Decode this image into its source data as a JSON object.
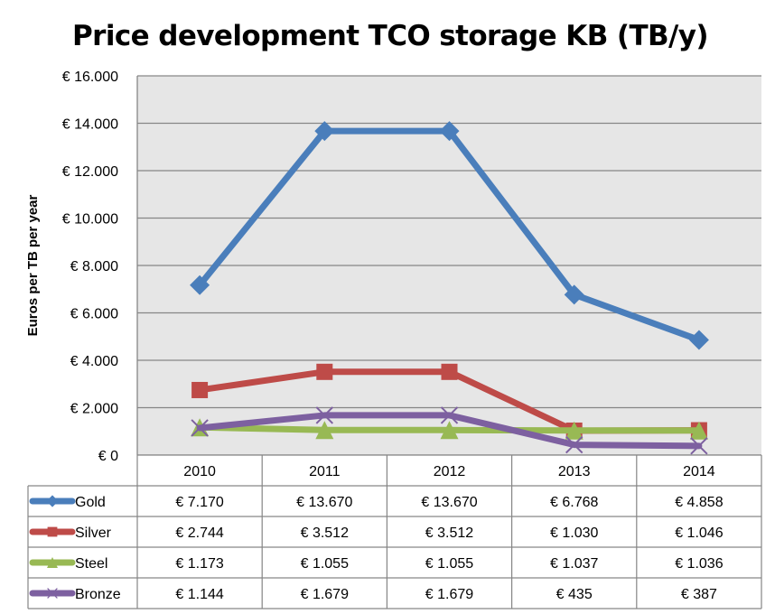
{
  "chart_data": {
    "type": "line",
    "title": "Price development TCO storage KB (TB/y)",
    "xlabel": "",
    "ylabel": "Euros per TB per year",
    "ylim": [
      0,
      16000
    ],
    "ytick_step": 2000,
    "yticks": [
      "€ 0",
      "€ 2.000",
      "€ 4.000",
      "€ 6.000",
      "€ 8.000",
      "€ 10.000",
      "€ 12.000",
      "€ 14.000",
      "€ 16.000"
    ],
    "grid": true,
    "legend": "data-table-below",
    "categories": [
      "2010",
      "2011",
      "2012",
      "2013",
      "2014"
    ],
    "series": [
      {
        "name": "Gold",
        "color": "#4A7EBB",
        "marker": "diamond",
        "values": [
          7170,
          13670,
          13670,
          6768,
          4858
        ],
        "labels": [
          "€ 7.170",
          "€ 13.670",
          "€ 13.670",
          "€ 6.768",
          "€ 4.858"
        ]
      },
      {
        "name": "Silver",
        "color": "#BE4B48",
        "marker": "square",
        "values": [
          2744,
          3512,
          3512,
          1030,
          1046
        ],
        "labels": [
          "€ 2.744",
          "€ 3.512",
          "€ 3.512",
          "€ 1.030",
          "€ 1.046"
        ]
      },
      {
        "name": "Steel",
        "color": "#98B954",
        "marker": "triangle",
        "values": [
          1173,
          1055,
          1055,
          1037,
          1036
        ],
        "labels": [
          "€ 1.173",
          "€ 1.055",
          "€ 1.055",
          "€ 1.037",
          "€ 1.036"
        ]
      },
      {
        "name": "Bronze",
        "color": "#7D60A0",
        "marker": "x",
        "values": [
          1144,
          1679,
          1679,
          435,
          387
        ],
        "labels": [
          "€ 1.144",
          "€ 1.679",
          "€ 1.679",
          "€ 435",
          "€ 387"
        ]
      }
    ]
  },
  "style": {
    "plot_background": "#E6E6E6",
    "grid_color": "#868686",
    "table_border": "#868686"
  }
}
